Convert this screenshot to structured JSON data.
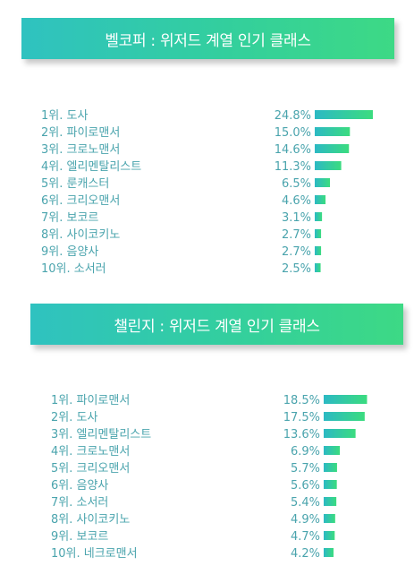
{
  "colors": {
    "bar_start": "#2cb9c4",
    "bar_end": "#3bdc7f",
    "text": "#4aa4ad",
    "banner_start": "#2fc2c0",
    "banner_end": "#3dd985"
  },
  "chart_data": [
    {
      "type": "bar",
      "title": "벨코퍼 : 위저드 계열 인기 클래스",
      "categories": [
        "1위. 도사",
        "2위. 파이로맨서",
        "3위. 크로노맨서",
        "4위. 엘리멘탈리스트",
        "5위. 룬캐스터",
        "6위. 크리오맨서",
        "7위. 보코르",
        "8위. 사이코키노",
        "9위. 음양사",
        "10위. 소서러"
      ],
      "value_labels": [
        "24.8%",
        "15.0%",
        "14.6%",
        "11.3%",
        "6.5%",
        "4.6%",
        "3.1%",
        "2.7%",
        "2.7%",
        "2.5%"
      ],
      "values": [
        24.8,
        15.0,
        14.6,
        11.3,
        6.5,
        4.6,
        3.1,
        2.7,
        2.7,
        2.5
      ]
    },
    {
      "type": "bar",
      "title": "챌린지 : 위저드 계열 인기 클래스",
      "categories": [
        "1위. 파이로맨서",
        "2위. 도사",
        "3위. 엘리멘탈리스트",
        "4위. 크로노맨서",
        "5위. 크리오맨서",
        "6위. 음양사",
        "7위. 소서러",
        "8위. 사이코키노",
        "9위. 보코르",
        "10위. 네크로맨서"
      ],
      "value_labels": [
        "18.5%",
        "17.5%",
        "13.6%",
        "6.9%",
        "5.7%",
        "5.6%",
        "5.4%",
        "4.9%",
        "4.7%",
        "4.2%"
      ],
      "values": [
        18.5,
        17.5,
        13.6,
        6.9,
        5.7,
        5.6,
        5.4,
        4.9,
        4.7,
        4.2
      ]
    }
  ]
}
